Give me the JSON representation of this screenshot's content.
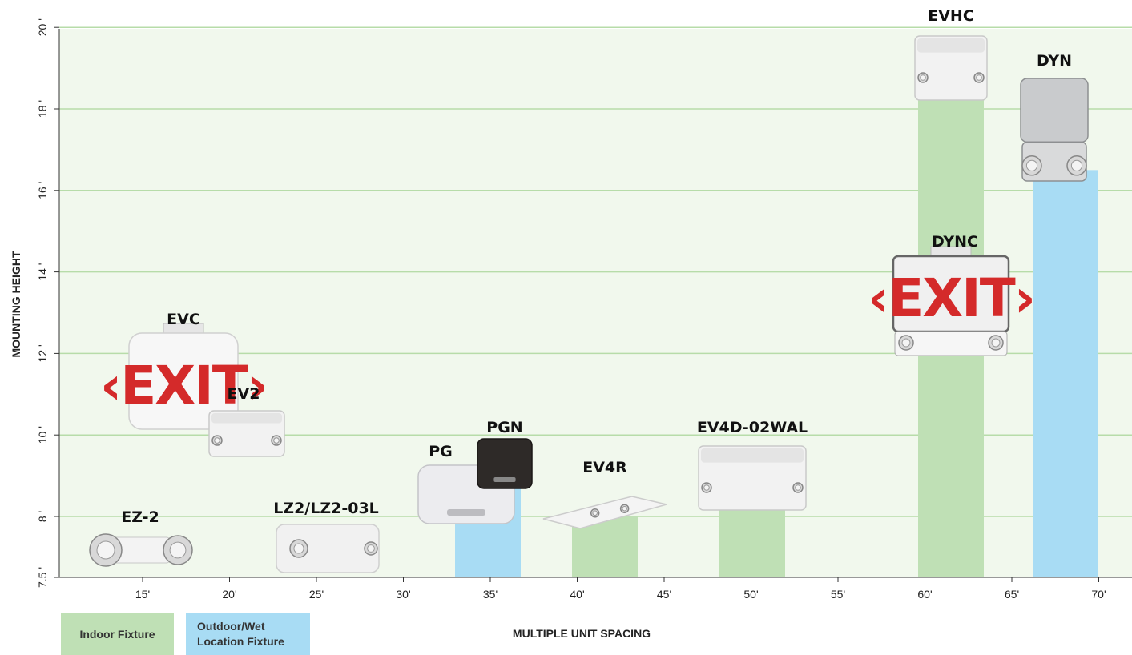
{
  "colors": {
    "indoor": "#bfe0b5",
    "outdoor": "#a8dcf4",
    "plot_bg": "#f1f8ed",
    "grid": "#b7dca9"
  },
  "legend": {
    "indoor_label": "Indoor Fixture",
    "outdoor_label": "Outdoor/Wet Location Fixture"
  },
  "chart_data": {
    "type": "bar",
    "title": "",
    "xlabel": "MULTIPLE UNIT SPACING",
    "ylabel": "MOUNTING HEIGHT",
    "xlim": [
      10,
      72.5
    ],
    "ylim": [
      7.5,
      20
    ],
    "x_ticks": [
      15,
      20,
      25,
      30,
      35,
      40,
      45,
      50,
      55,
      60,
      65,
      70
    ],
    "x_tick_labels": [
      "15'",
      "20'",
      "25'",
      "30'",
      "35'",
      "40'",
      "45'",
      "50'",
      "55'",
      "60'",
      "65'",
      "70'"
    ],
    "y_ticks": [
      7.5,
      8,
      10,
      12,
      14,
      16,
      18,
      20
    ],
    "y_tick_labels": [
      "7.5 '",
      "8 '",
      "10 '",
      "12 '",
      "14 '",
      "16 '",
      "18 '",
      "20 '"
    ],
    "grid": true,
    "legend_position": "bottom-left",
    "fixtures": [
      {
        "name": "EZ-2",
        "spacing": 16,
        "height": 8,
        "category": "indoor",
        "bar": false
      },
      {
        "name": "EVC",
        "spacing": 17,
        "height": 11.5,
        "category": "indoor",
        "bar": false
      },
      {
        "name": "EV2",
        "spacing": 21,
        "height": 10,
        "category": "indoor",
        "bar": false
      },
      {
        "name": "LZ2/LZ2-03L",
        "spacing": 25,
        "height": 8,
        "category": "indoor",
        "bar": false
      },
      {
        "name": "PG",
        "spacing": 33,
        "height": 8,
        "category": "outdoor",
        "bar": true
      },
      {
        "name": "PGN",
        "spacing": 35,
        "height": 8.7,
        "category": "outdoor",
        "bar": true
      },
      {
        "name": "EV4R",
        "spacing": 42,
        "height": 8,
        "category": "indoor",
        "bar": true
      },
      {
        "name": "EV4D-02WAL",
        "spacing": 50,
        "height": 8.3,
        "category": "indoor",
        "bar": true
      },
      {
        "name": "DYNC",
        "spacing": 62,
        "height": 12,
        "category": "outdoor",
        "bar": false
      },
      {
        "name": "EVHC",
        "spacing": 62,
        "height": 18.5,
        "category": "indoor",
        "bar": true
      },
      {
        "name": "DYN",
        "spacing": 68.5,
        "height": 16.5,
        "category": "outdoor",
        "bar": true
      }
    ]
  }
}
